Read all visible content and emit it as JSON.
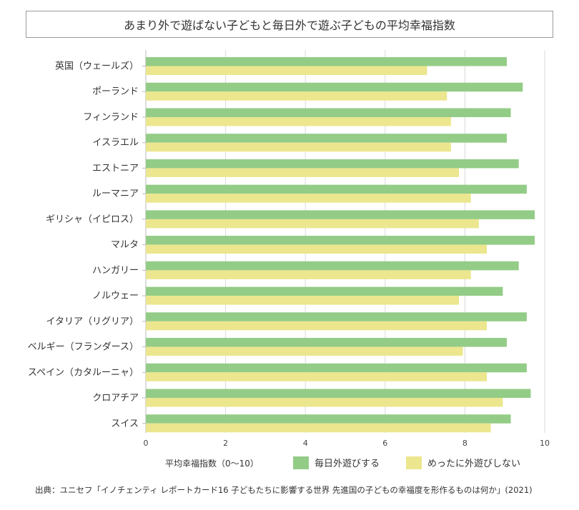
{
  "chart_data": {
    "type": "bar",
    "orientation": "horizontal",
    "title": "あまり外で遊ばない子どもと毎日外で遊ぶ子どもの平均幸福指数",
    "xlabel": "平均幸福指数（0〜10）",
    "ylabel": "",
    "xlim": [
      0,
      10
    ],
    "xticks": [
      "0",
      "2",
      "4",
      "6",
      "8",
      "10"
    ],
    "grid": "vertical",
    "legend_position": "bottom",
    "categories": [
      "英国（ウェールズ）",
      "ポーランド",
      "フィンランド",
      "イスラエル",
      "エストニア",
      "ルーマニア",
      "ギリシャ（イピロス）",
      "マルタ",
      "ハンガリー",
      "ノルウェー",
      "イタリア（リグリア）",
      "ベルギー（フランダース）",
      "スペイン（カタルーニャ）",
      "クロアチア",
      "スイス"
    ],
    "series": [
      {
        "name": "毎日外遊びする",
        "color": "#93cc86",
        "values": [
          9.05,
          9.45,
          9.15,
          9.05,
          9.35,
          9.55,
          9.75,
          9.75,
          9.35,
          8.95,
          9.55,
          9.05,
          9.55,
          9.65,
          9.15
        ]
      },
      {
        "name": "めったに外遊びしない",
        "color": "#ece68e",
        "values": [
          7.05,
          7.55,
          7.65,
          7.65,
          7.85,
          8.15,
          8.35,
          8.55,
          8.15,
          7.85,
          8.55,
          7.95,
          8.55,
          8.95,
          8.65
        ]
      }
    ]
  },
  "source": "出典：ユニセフ「イノチェンティ レポートカード16 子どもたちに影響する世界 先進国の子どもの幸福度を形作るものは何か」(2021)"
}
